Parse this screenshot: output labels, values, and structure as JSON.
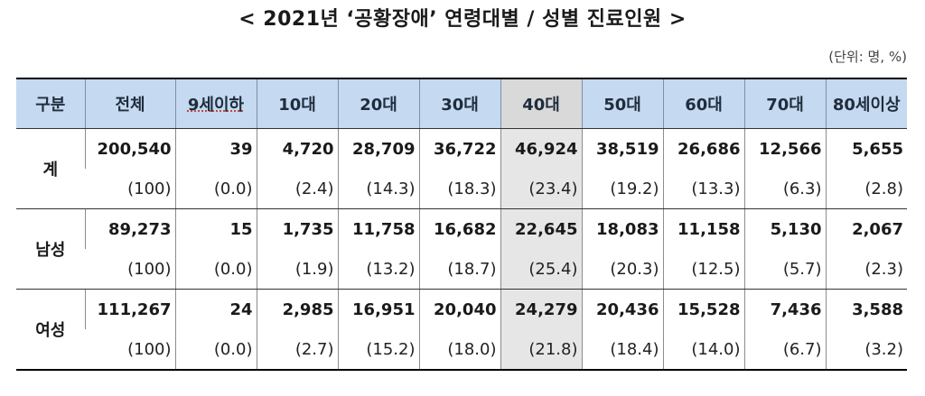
{
  "title": "< 2021년 ‘공황장애’ 연령대별 / 성별 진료인원 >",
  "unit": "(단위: 명, %)",
  "headers": [
    "구분",
    "전체",
    "9세이하",
    "10대",
    "20대",
    "30대",
    "40대",
    "50대",
    "60대",
    "70대",
    "80세이상"
  ],
  "highlight_column": "40대",
  "rows": [
    {
      "label": "계",
      "values": [
        "200,540",
        "39",
        "4,720",
        "28,709",
        "36,722",
        "46,924",
        "38,519",
        "26,686",
        "12,566",
        "5,655"
      ],
      "percents": [
        "(100)",
        "(0.0)",
        "(2.4)",
        "(14.3)",
        "(18.3)",
        "(23.4)",
        "(19.2)",
        "(13.3)",
        "(6.3)",
        "(2.8)"
      ]
    },
    {
      "label": "남성",
      "values": [
        "89,273",
        "15",
        "1,735",
        "11,758",
        "16,682",
        "22,645",
        "18,083",
        "11,158",
        "5,130",
        "2,067"
      ],
      "percents": [
        "(100)",
        "(0.0)",
        "(1.9)",
        "(13.2)",
        "(18.7)",
        "(25.4)",
        "(20.3)",
        "(12.5)",
        "(5.7)",
        "(2.3)"
      ]
    },
    {
      "label": "여성",
      "values": [
        "111,267",
        "24",
        "2,985",
        "16,951",
        "20,040",
        "24,279",
        "20,436",
        "15,528",
        "7,436",
        "3,588"
      ],
      "percents": [
        "(100)",
        "(0.0)",
        "(2.7)",
        "(15.2)",
        "(18.0)",
        "(21.8)",
        "(18.4)",
        "(14.0)",
        "(6.7)",
        "(3.2)"
      ]
    }
  ],
  "colors": {
    "header_bg": "#c5d9f1",
    "highlight_header_bg": "#d9d9d9",
    "highlight_cell_bg": "#e7e6e6"
  }
}
